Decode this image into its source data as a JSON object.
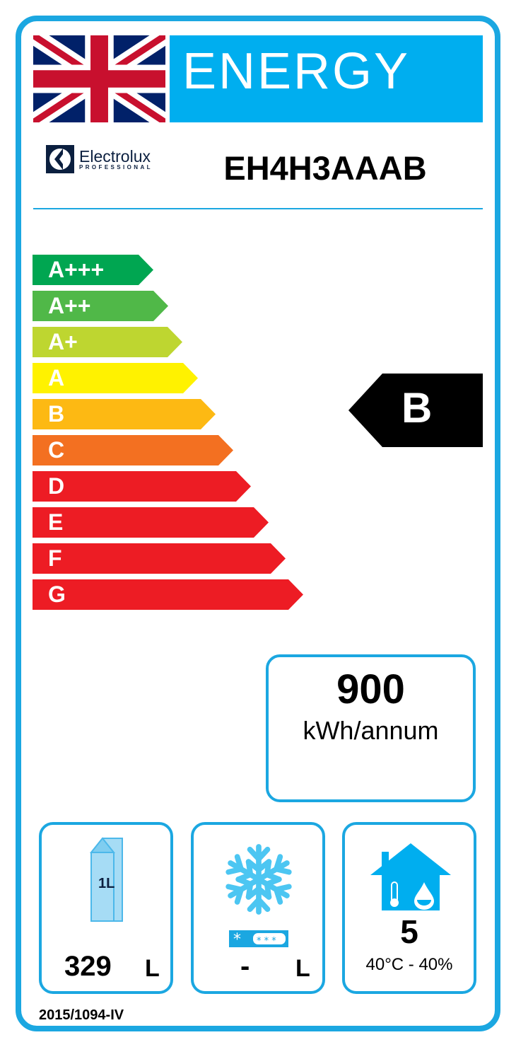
{
  "header": {
    "title": "ENERGY",
    "brand": "Electrolux",
    "brand_sub": "PROFESSIONAL",
    "model": "EH4H3AAAB",
    "flag_icon": "union-jack-flag"
  },
  "scale": [
    {
      "label": "A+++",
      "color": "#00a651"
    },
    {
      "label": "A++",
      "color": "#50b848"
    },
    {
      "label": "A+",
      "color": "#bed630"
    },
    {
      "label": "A",
      "color": "#fff200"
    },
    {
      "label": "B",
      "color": "#fdb913"
    },
    {
      "label": "C",
      "color": "#f37021"
    },
    {
      "label": "D",
      "color": "#ed1c24"
    },
    {
      "label": "E",
      "color": "#ed1c24"
    },
    {
      "label": "F",
      "color": "#ed1c24"
    },
    {
      "label": "G",
      "color": "#ed1c24"
    }
  ],
  "rating": {
    "class": "B"
  },
  "consumption": {
    "value": "900",
    "unit": "kWh/annum"
  },
  "fresh_volume": {
    "value": "329",
    "unit": "L",
    "icon": "milk-carton-icon",
    "icon_text": "1L"
  },
  "frozen_volume": {
    "value": "-",
    "unit": "L",
    "icon": "snowflake-icon"
  },
  "climate": {
    "class": "5",
    "conditions": "40°C - 40%",
    "icon": "house-temperature-humidity-icon"
  },
  "footer": {
    "regulation": "2015/1094-IV"
  },
  "colors": {
    "accent": "#1ba7e1",
    "banner": "#00aeef"
  }
}
